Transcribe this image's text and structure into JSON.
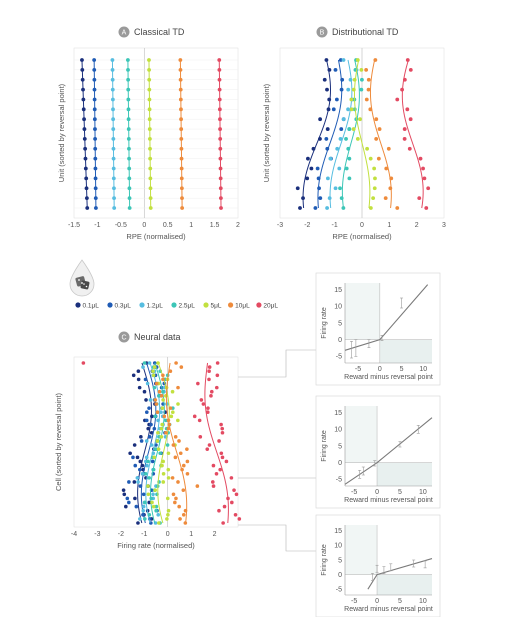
{
  "colors": {
    "0.1": "#1a2f7c",
    "0.3": "#1f5bb5",
    "1.2": "#56bde0",
    "2.5": "#3cc6b7",
    "5": "#c2e03f",
    "10": "#ee8b3c",
    "20": "#e34a62",
    "grid": "#dedede",
    "axis": "#9a9a9a",
    "fit": "#7a7a7a",
    "inset_bg": "#e8f0ef"
  },
  "panels": {
    "a": {
      "letter": "A",
      "title": "Classical TD"
    },
    "b": {
      "letter": "B",
      "title": "Distributional TD"
    },
    "c": {
      "letter": "C",
      "title": "Neural data"
    }
  },
  "icon": "juice-drop-dice-icon",
  "legend": [
    {
      "key": "0.1",
      "label": "0.1μL"
    },
    {
      "key": "0.3",
      "label": "0.3μL"
    },
    {
      "key": "1.2",
      "label": "1.2μL"
    },
    {
      "key": "2.5",
      "label": "2.5μL"
    },
    {
      "key": "5",
      "label": "5μL"
    },
    {
      "key": "10",
      "label": "10μL"
    },
    {
      "key": "20",
      "label": "20μL"
    }
  ],
  "chart_data": [
    {
      "id": "classical",
      "type": "scatter",
      "xlabel": "RPE (normalised)",
      "ylabel": "Unit (sorted by reversal point)",
      "xlim": [
        -1.5,
        2
      ],
      "x_ticks": [
        "-1.5",
        "-1",
        "-0.5",
        "0",
        "0.5",
        "1",
        "1.5",
        "2"
      ],
      "x_tick_values": [
        -1.5,
        -1,
        -0.5,
        0,
        0.5,
        1,
        1.5,
        2
      ],
      "units": 16,
      "series": [
        {
          "key": "0.1",
          "x": -1.33
        },
        {
          "key": "0.3",
          "x": -1.07
        },
        {
          "key": "1.2",
          "x": -0.68
        },
        {
          "key": "2.5",
          "x": -0.35
        },
        {
          "key": "5",
          "x": 0.1
        },
        {
          "key": "10",
          "x": 0.77
        },
        {
          "key": "20",
          "x": 1.6
        }
      ]
    },
    {
      "id": "distributional",
      "type": "scatter",
      "xlabel": "RPE (normalised)",
      "ylabel": "Unit (sorted by reversal point)",
      "xlim": [
        -3,
        3
      ],
      "x_ticks": [
        "-3",
        "-2",
        "-1",
        "0",
        "1",
        "2",
        "3"
      ],
      "x_tick_values": [
        -3,
        -2,
        -1,
        0,
        1,
        2,
        3
      ],
      "units": 16,
      "series": [
        {
          "key": "0.1",
          "top": -1.4,
          "bottom": -1.85,
          "wiggle": 0.35
        },
        {
          "key": "0.3",
          "top": -0.95,
          "bottom": -1.35,
          "wiggle": 0.3
        },
        {
          "key": "1.2",
          "top": -0.6,
          "bottom": -0.9,
          "wiggle": 0.3
        },
        {
          "key": "2.5",
          "top": -0.35,
          "bottom": -0.45,
          "wiggle": 0.28
        },
        {
          "key": "5",
          "top": -0.05,
          "bottom": 0.05,
          "wiggle": 0.25
        },
        {
          "key": "10",
          "top": 0.55,
          "bottom": 0.8,
          "wiggle": 0.3
        },
        {
          "key": "20",
          "top": 1.8,
          "bottom": 1.9,
          "wiggle": 0.35
        }
      ]
    },
    {
      "id": "neural",
      "type": "scatter",
      "xlabel": "Firing rate (normalised)",
      "ylabel": "Cell (sorted by reversal point)",
      "xlim": [
        -4,
        3
      ],
      "x_ticks": [
        "-4",
        "-3",
        "-2",
        "-1",
        "0",
        "1",
        "2"
      ],
      "x_tick_values": [
        -4,
        -3,
        -2,
        -1,
        0,
        1,
        2
      ],
      "cells": 40,
      "series": [
        {
          "key": "0.1",
          "top": -1.1,
          "bottom": -0.9
        },
        {
          "key": "0.3",
          "top": -0.9,
          "bottom": -0.75
        },
        {
          "key": "1.2",
          "top": -0.75,
          "bottom": -0.55
        },
        {
          "key": "2.5",
          "top": -0.55,
          "bottom": -0.35
        },
        {
          "key": "5",
          "top": -0.4,
          "bottom": 0.0
        },
        {
          "key": "10",
          "top": 0.1,
          "bottom": 0.6
        },
        {
          "key": "20",
          "top": 1.7,
          "bottom": 2.4
        }
      ]
    },
    {
      "id": "inset1",
      "type": "line",
      "xlabel": "Reward minus reversal point",
      "ylabel": "Firing rate",
      "xlim": [
        -8,
        12
      ],
      "ylim": [
        -7,
        17
      ],
      "x_ticks": [
        "-5",
        "0",
        "5",
        "10"
      ],
      "x_tick_values": [
        -5,
        0,
        5,
        10
      ],
      "y_ticks": [
        "-5",
        "0",
        "5",
        "10",
        "15"
      ],
      "y_tick_values": [
        -5,
        0,
        5,
        10,
        15
      ],
      "fit": [
        [
          -8,
          -3.2
        ],
        [
          0,
          0
        ],
        [
          11,
          16.5
        ]
      ],
      "points": [
        {
          "x": -6.5,
          "y": -3,
          "e": 2.5
        },
        {
          "x": -5.5,
          "y": -2.5,
          "e": 2.5
        },
        {
          "x": -2.5,
          "y": -1.2,
          "e": 1.2
        },
        {
          "x": 0.5,
          "y": 0.5,
          "e": 0.8
        },
        {
          "x": 5,
          "y": 11,
          "e": 1.5
        }
      ]
    },
    {
      "id": "inset2",
      "type": "line",
      "xlabel": "Reward minus reversal point",
      "ylabel": "Firing rate",
      "xlim": [
        -7,
        12
      ],
      "ylim": [
        -7,
        17
      ],
      "x_ticks": [
        "-5",
        "0",
        "5",
        "10"
      ],
      "x_tick_values": [
        -5,
        0,
        5,
        10
      ],
      "y_ticks": [
        "-5",
        "0",
        "5",
        "10",
        "15"
      ],
      "y_tick_values": [
        -5,
        0,
        5,
        10,
        15
      ],
      "fit": [
        [
          -7,
          -6.5
        ],
        [
          0,
          0
        ],
        [
          12,
          13.5
        ]
      ],
      "points": [
        {
          "x": -3.8,
          "y": -3.5,
          "e": 1.2
        },
        {
          "x": -3,
          "y": -2.5,
          "e": 1.2
        },
        {
          "x": -0.5,
          "y": -0.2,
          "e": 0.8
        },
        {
          "x": 5,
          "y": 5.5,
          "e": 0.8
        },
        {
          "x": 9,
          "y": 10,
          "e": 1.2
        }
      ]
    },
    {
      "id": "inset3",
      "type": "line",
      "xlabel": "Reward minus reversal point",
      "ylabel": "Firing rate",
      "xlim": [
        -7,
        12
      ],
      "ylim": [
        -7,
        17
      ],
      "x_ticks": [
        "-5",
        "0",
        "5",
        "10"
      ],
      "x_tick_values": [
        -5,
        0,
        5,
        10
      ],
      "y_ticks": [
        "-5",
        "0",
        "5",
        "10",
        "15"
      ],
      "y_tick_values": [
        -5,
        0,
        5,
        10,
        15
      ],
      "fit": [
        [
          -2,
          -5
        ],
        [
          0,
          0
        ],
        [
          12,
          5.5
        ]
      ],
      "points": [
        {
          "x": -1,
          "y": -0.8,
          "e": 1.2
        },
        {
          "x": 0,
          "y": 2,
          "e": 1.2
        },
        {
          "x": 1.5,
          "y": 1.5,
          "e": 1.2
        },
        {
          "x": 3,
          "y": 2.5,
          "e": 1.2
        },
        {
          "x": 8,
          "y": 3.8,
          "e": 1.2
        },
        {
          "x": 10.5,
          "y": 3.5,
          "e": 1.2
        }
      ]
    }
  ]
}
